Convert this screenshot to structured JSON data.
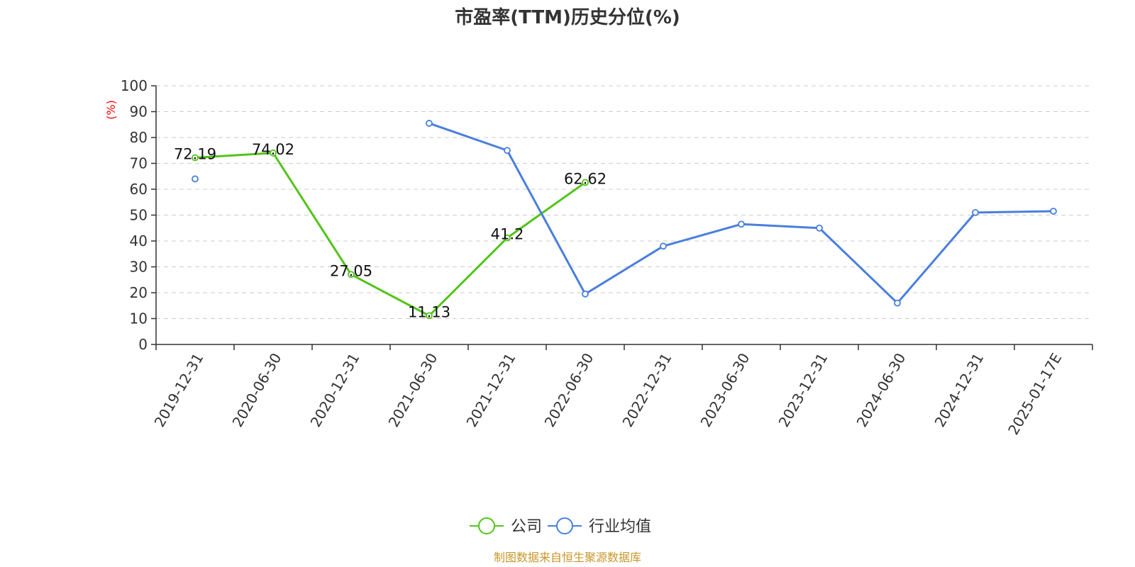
{
  "chart_data": {
    "type": "line",
    "title": "市盈率(TTM)历史分位(%)",
    "ylabel": "(%)",
    "ylim": [
      0,
      100
    ],
    "yticks": [
      0,
      10,
      20,
      30,
      40,
      50,
      60,
      70,
      80,
      90,
      100
    ],
    "grid": true,
    "legend_position": "bottom",
    "categories": [
      "2019-12-31",
      "2020-06-30",
      "2020-12-31",
      "2021-06-30",
      "2021-12-31",
      "2022-06-30",
      "2022-12-31",
      "2023-06-30",
      "2023-12-31",
      "2024-06-30",
      "2024-12-31",
      "2025-01-17E"
    ],
    "series": [
      {
        "name": "公司",
        "color": "#52c41a",
        "show_labels": true,
        "values": [
          72.19,
          74.02,
          27.05,
          11.13,
          41.2,
          62.62,
          null,
          null,
          null,
          null,
          null,
          null
        ],
        "labels": [
          "72.19",
          "74.02",
          "27.05",
          "11.13",
          "41.2",
          "62.62",
          null,
          null,
          null,
          null,
          null,
          null
        ]
      },
      {
        "name": "行业均值",
        "color": "#4a7fdc",
        "show_labels": false,
        "values": [
          64,
          null,
          null,
          85.5,
          75,
          19.5,
          38,
          46.5,
          45,
          16,
          51,
          51.5
        ]
      }
    ],
    "source": "制图数据来自恒生聚源数据库",
    "source_color": "#c8962a",
    "ylabel_color": "#ff0000"
  }
}
